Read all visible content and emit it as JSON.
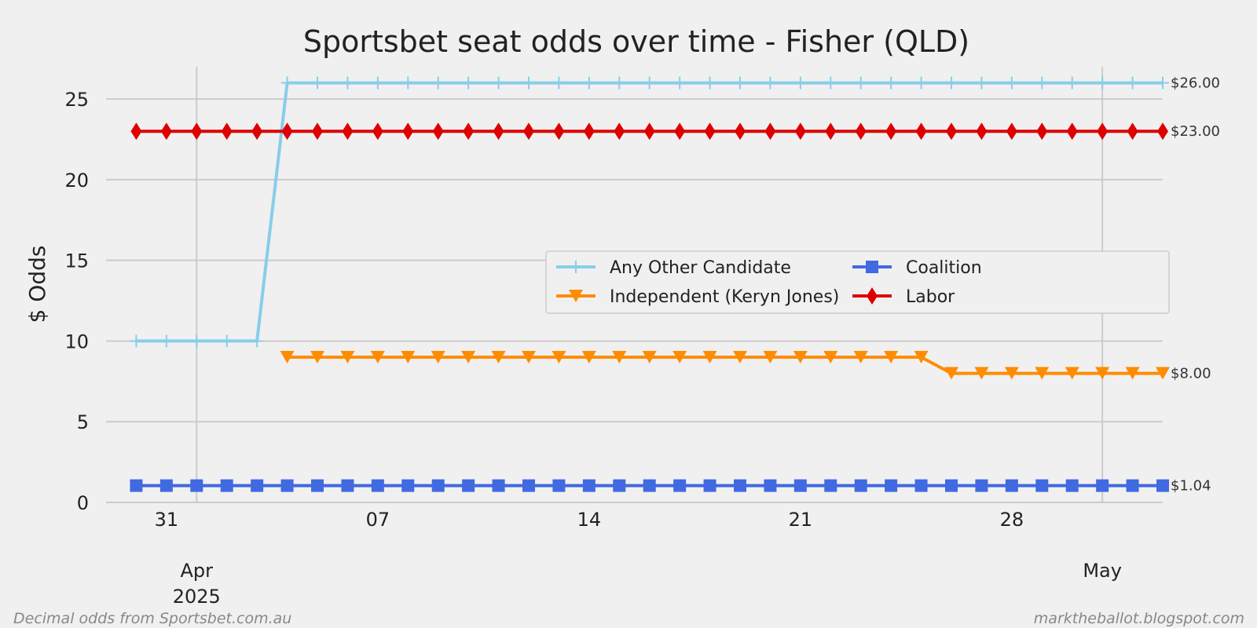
{
  "chart_data": {
    "type": "line",
    "title": "Sportsbet seat odds over time - Fisher (QLD)",
    "ylabel": "$ Odds",
    "xlabel": "",
    "ylim": [
      0,
      27
    ],
    "yticks": [
      0,
      5,
      10,
      15,
      20,
      25
    ],
    "xlim": [
      "2025-03-29",
      "2025-05-03"
    ],
    "x_ticks": [
      {
        "date": "2025-03-31",
        "label": "31"
      },
      {
        "date": "2025-04-07",
        "label": "07"
      },
      {
        "date": "2025-04-14",
        "label": "14"
      },
      {
        "date": "2025-04-21",
        "label": "21"
      },
      {
        "date": "2025-04-28",
        "label": "28"
      }
    ],
    "x_major_ticks": [
      {
        "date": "2025-04-01",
        "label": "Apr",
        "sublabel": "2025"
      },
      {
        "date": "2025-05-01",
        "label": "May",
        "sublabel": ""
      }
    ],
    "grid": true,
    "legend_position": "center-right",
    "legend_columns": 2,
    "x": [
      "2025-03-30",
      "2025-03-31",
      "2025-04-01",
      "2025-04-02",
      "2025-04-03",
      "2025-04-04",
      "2025-04-05",
      "2025-04-06",
      "2025-04-07",
      "2025-04-08",
      "2025-04-09",
      "2025-04-10",
      "2025-04-11",
      "2025-04-12",
      "2025-04-13",
      "2025-04-14",
      "2025-04-15",
      "2025-04-16",
      "2025-04-17",
      "2025-04-18",
      "2025-04-19",
      "2025-04-20",
      "2025-04-21",
      "2025-04-22",
      "2025-04-23",
      "2025-04-24",
      "2025-04-25",
      "2025-04-26",
      "2025-04-27",
      "2025-04-28",
      "2025-04-29",
      "2025-04-30",
      "2025-05-01",
      "2025-05-02",
      "2025-05-03"
    ],
    "series": [
      {
        "name": "Any Other Candidate",
        "color": "#87ceeb",
        "marker": "plus",
        "values": [
          10,
          10,
          10,
          10,
          10,
          26,
          26,
          26,
          26,
          26,
          26,
          26,
          26,
          26,
          26,
          26,
          26,
          26,
          26,
          26,
          26,
          26,
          26,
          26,
          26,
          26,
          26,
          26,
          26,
          26,
          26,
          26,
          26,
          26,
          26
        ],
        "end_label": "$26.00"
      },
      {
        "name": "Coalition",
        "color": "#4169e1",
        "marker": "square",
        "values": [
          1.04,
          1.04,
          1.04,
          1.04,
          1.04,
          1.04,
          1.04,
          1.04,
          1.04,
          1.04,
          1.04,
          1.04,
          1.04,
          1.04,
          1.04,
          1.04,
          1.04,
          1.04,
          1.04,
          1.04,
          1.04,
          1.04,
          1.04,
          1.04,
          1.04,
          1.04,
          1.04,
          1.04,
          1.04,
          1.04,
          1.04,
          1.04,
          1.04,
          1.04,
          1.04
        ],
        "end_label": "$1.04"
      },
      {
        "name": "Independent (Keryn Jones)",
        "color": "#ff8c00",
        "marker": "triangle-down",
        "values": [
          null,
          null,
          null,
          null,
          null,
          9,
          9,
          9,
          9,
          9,
          9,
          9,
          9,
          9,
          9,
          9,
          9,
          9,
          9,
          9,
          9,
          9,
          9,
          9,
          9,
          9,
          9,
          8,
          8,
          8,
          8,
          8,
          8,
          8,
          8
        ],
        "end_label": "$8.00"
      },
      {
        "name": "Labor",
        "color": "#dd0000",
        "marker": "diamond",
        "values": [
          23,
          23,
          23,
          23,
          23,
          23,
          23,
          23,
          23,
          23,
          23,
          23,
          23,
          23,
          23,
          23,
          23,
          23,
          23,
          23,
          23,
          23,
          23,
          23,
          23,
          23,
          23,
          23,
          23,
          23,
          23,
          23,
          23,
          23,
          23
        ],
        "end_label": "$23.00"
      }
    ],
    "footer_left": "Decimal odds from Sportsbet.com.au",
    "footer_right": "marktheballot.blogspot.com"
  }
}
